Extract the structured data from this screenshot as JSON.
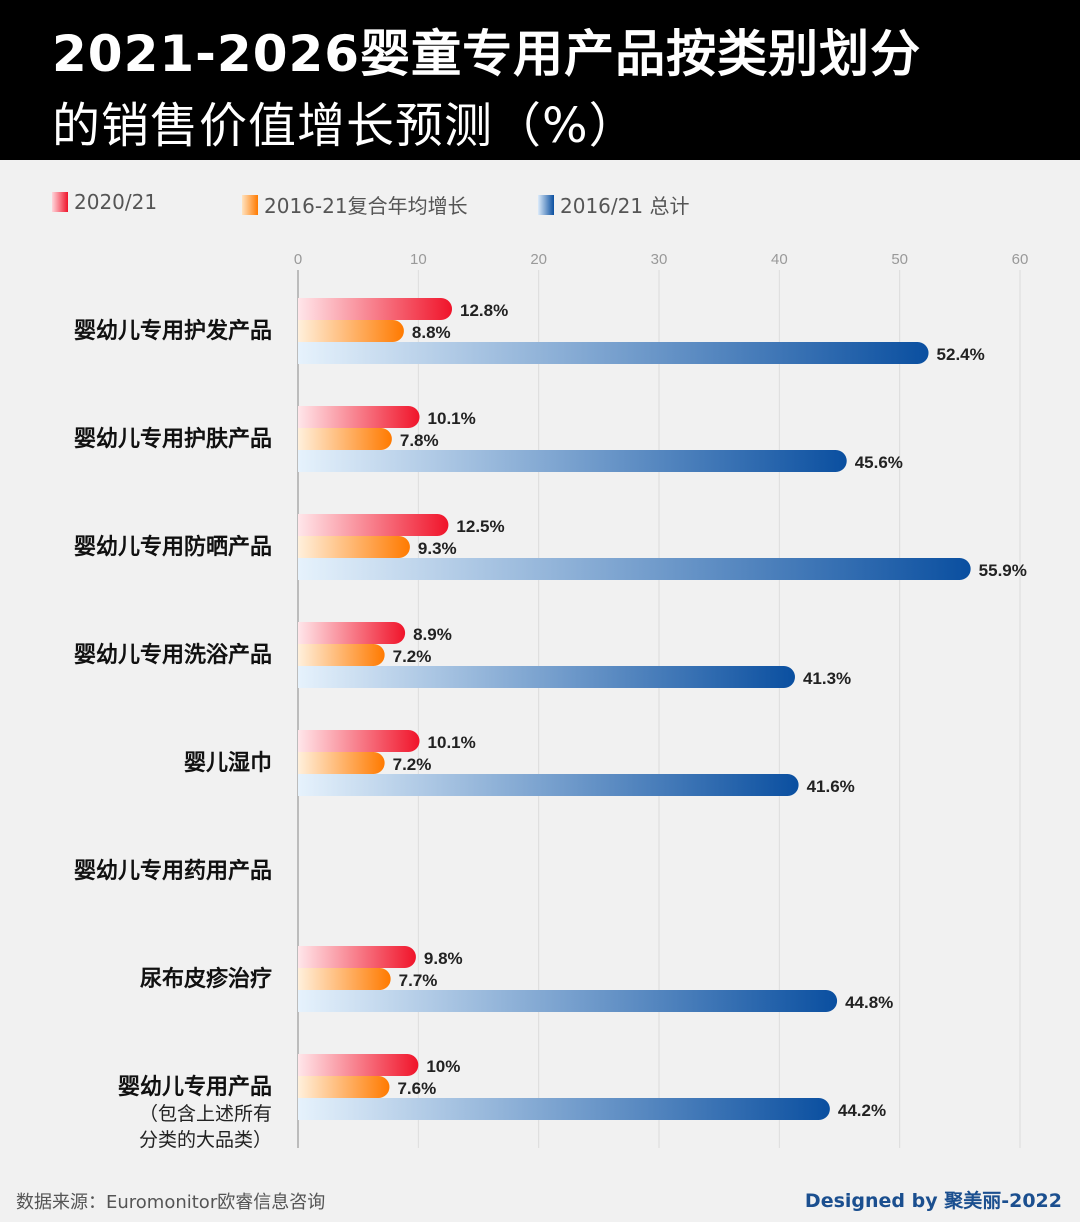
{
  "header": {
    "title_line1": "2021-2026婴童专用产品按类别划分",
    "title_line2": "的销售价值增长预测（%）"
  },
  "chart_data": {
    "type": "bar",
    "orientation": "horizontal",
    "title": "2021-2026婴童专用产品按类别划分的销售价值增长预测（%）",
    "xlim": [
      0,
      60
    ],
    "x_ticks": [
      "0",
      "10",
      "20",
      "30",
      "40",
      "50",
      "60"
    ],
    "grid": true,
    "legend_position": "top-left",
    "categories": [
      {
        "label": "婴幼儿专用护发产品",
        "sub": ""
      },
      {
        "label": "婴幼儿专用护肤产品",
        "sub": ""
      },
      {
        "label": "婴幼儿专用防晒产品",
        "sub": ""
      },
      {
        "label": "婴幼儿专用洗浴产品",
        "sub": ""
      },
      {
        "label": "婴儿湿巾",
        "sub": ""
      },
      {
        "label": "婴幼儿专用药用产品",
        "sub": ""
      },
      {
        "label": "尿布皮疹治疗",
        "sub": ""
      },
      {
        "label": "婴幼儿专用产品",
        "sub": "（包含上述所有",
        "sub2": "分类的大品类）"
      }
    ],
    "series": [
      {
        "name": "2020/21",
        "color": "#f0142a",
        "values": [
          12.8,
          10.1,
          12.5,
          8.9,
          10.1,
          null,
          9.8,
          10
        ],
        "labels": [
          "12.8%",
          "10.1%",
          "12.5%",
          "8.9%",
          "10.1%",
          "",
          "9.8%",
          "10%"
        ]
      },
      {
        "name": "2016-21复合年均增长",
        "color": "#ff7a00",
        "values": [
          8.8,
          7.8,
          9.3,
          7.2,
          7.2,
          null,
          7.7,
          7.6
        ],
        "labels": [
          "8.8%",
          "7.8%",
          "9.3%",
          "7.2%",
          "7.2%",
          "",
          "7.7%",
          "7.6%"
        ]
      },
      {
        "name": "2016/21 总计",
        "color": "#0a4fa0",
        "values": [
          52.4,
          45.6,
          55.9,
          41.3,
          41.6,
          null,
          44.8,
          44.2
        ],
        "labels": [
          "52.4%",
          "45.6%",
          "55.9%",
          "41.3%",
          "41.6%",
          "",
          "44.8%",
          "44.2%"
        ]
      }
    ]
  },
  "footer": {
    "source": "数据来源：Euromonitor欧睿信息咨询",
    "credit": "Designed by 聚美丽-2022"
  }
}
